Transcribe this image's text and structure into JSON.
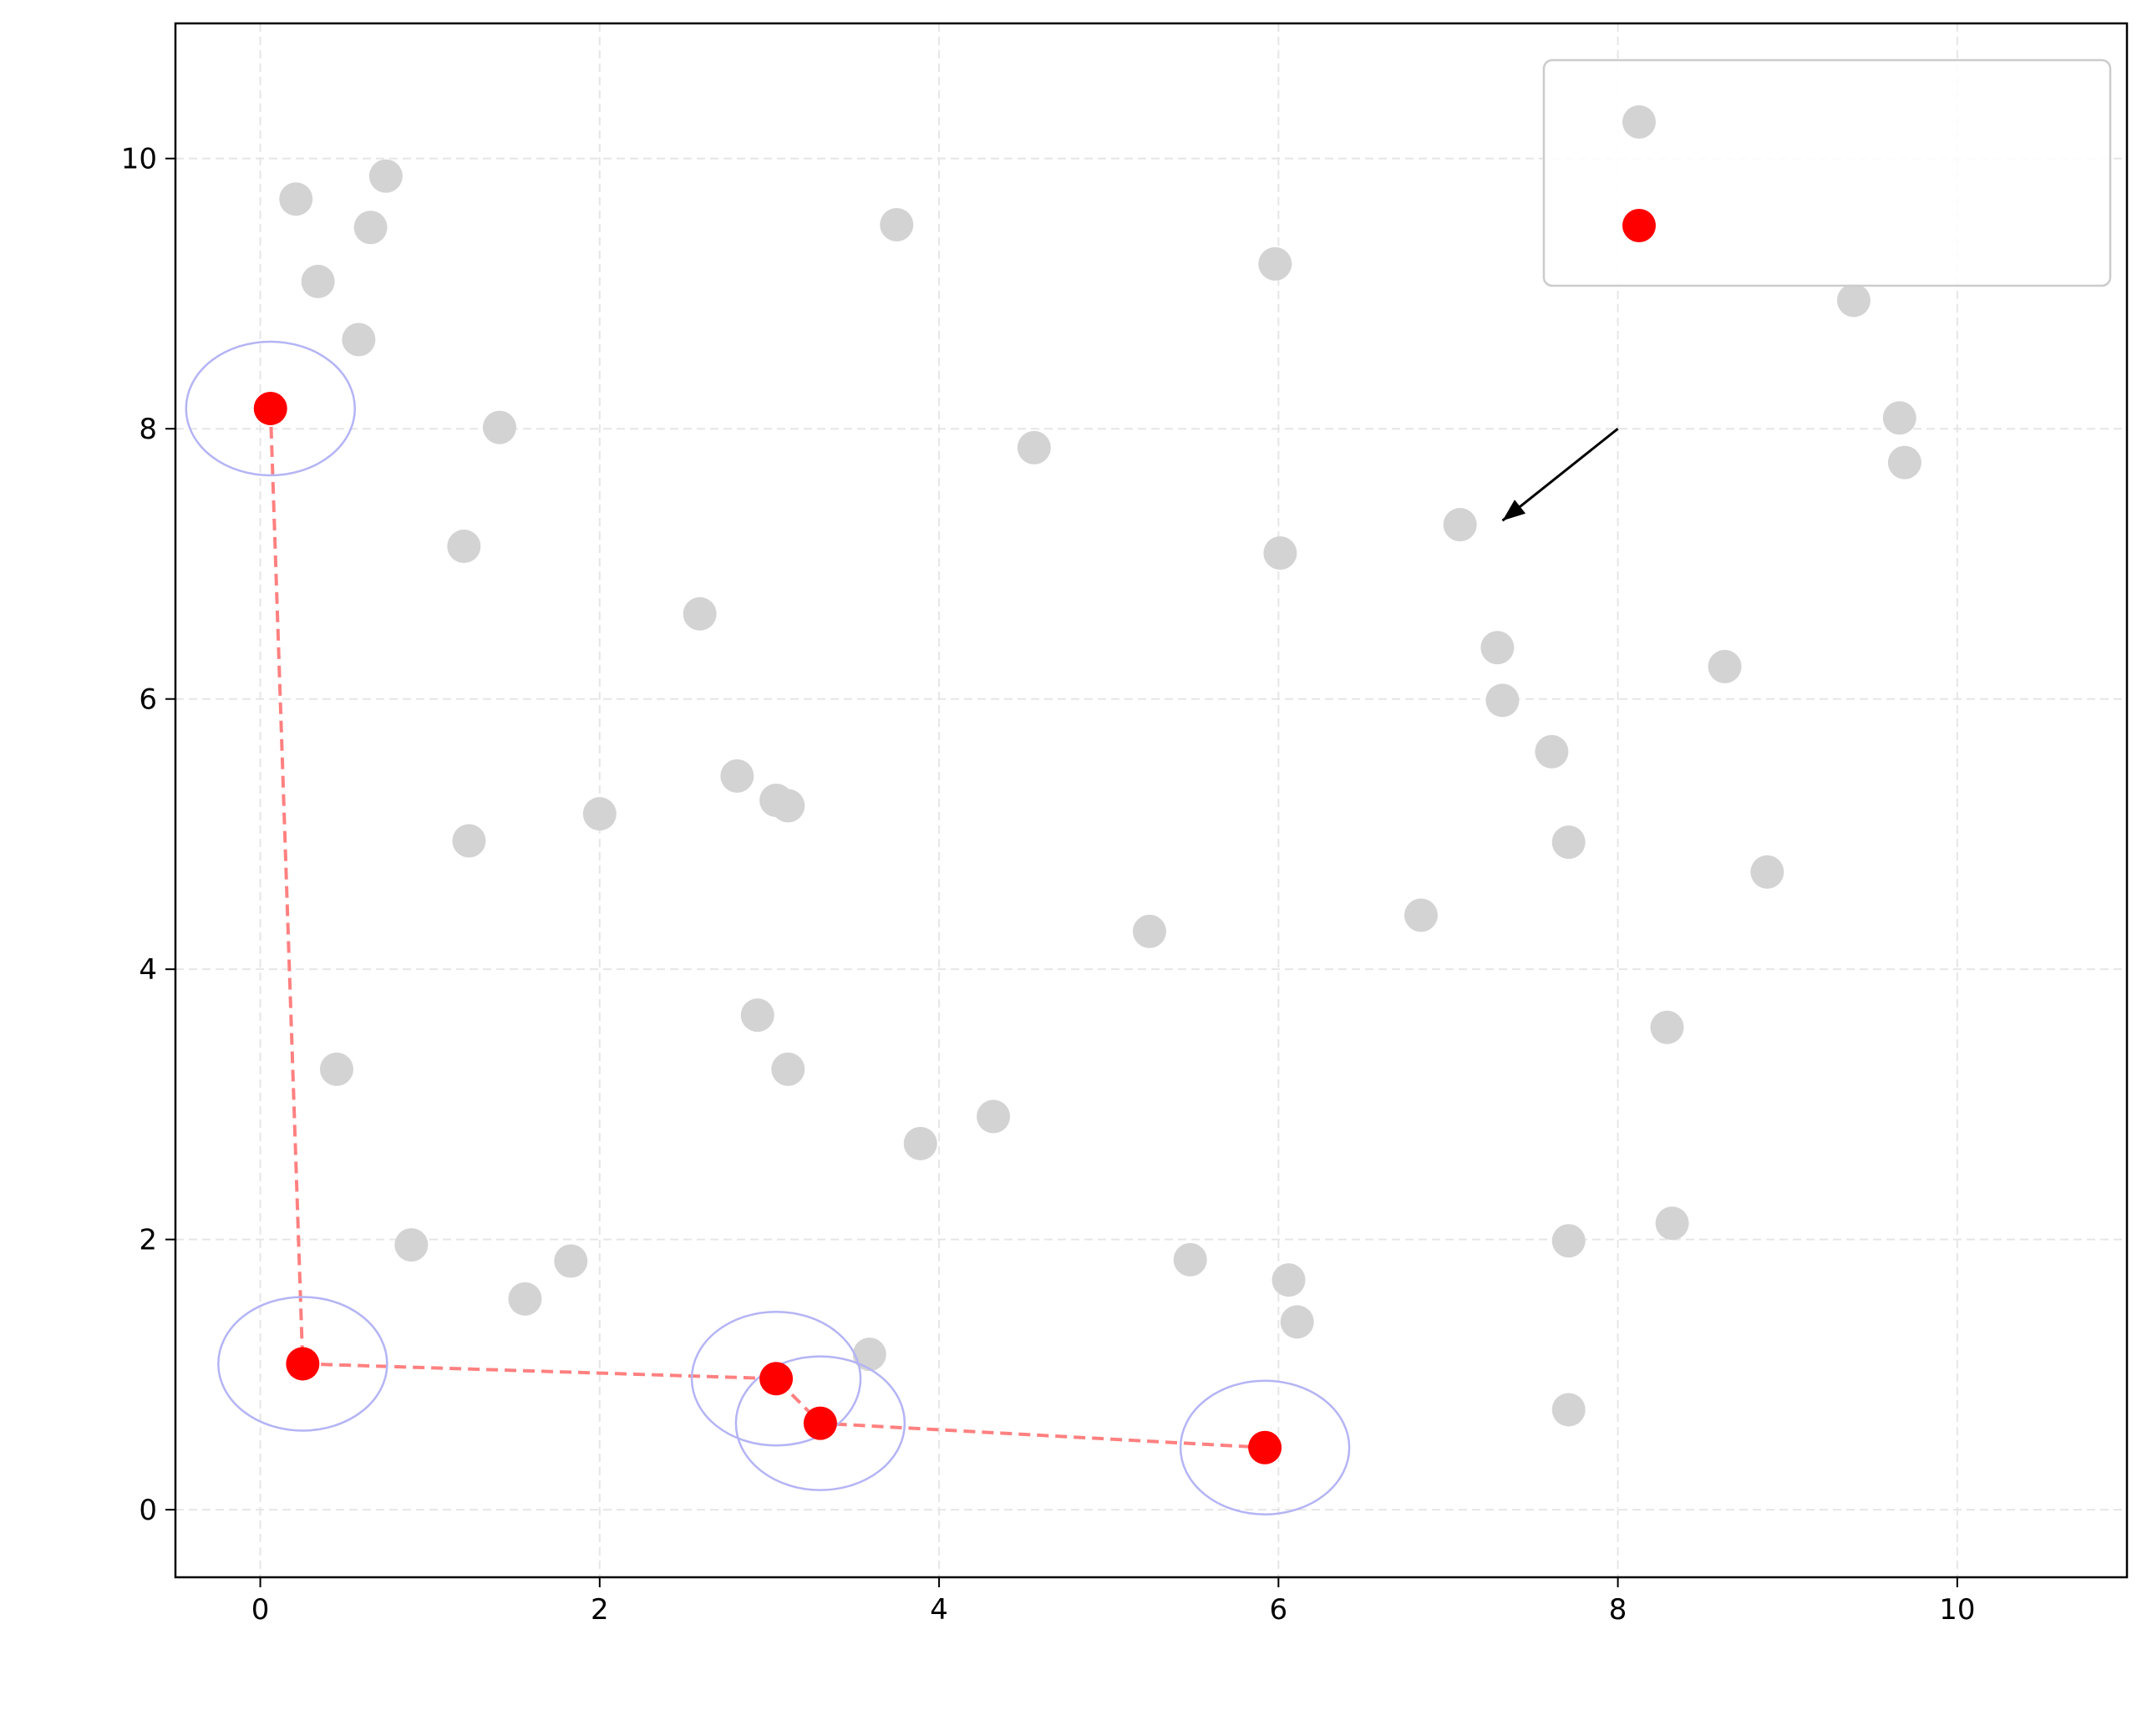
{
  "chart_data": {
    "type": "scatter",
    "title": "",
    "xlabel": "",
    "ylabel": "",
    "xlim": [
      -0.5,
      11.0
    ],
    "ylim": [
      -0.5,
      11.0
    ],
    "xticks": [
      0,
      2,
      4,
      6,
      8,
      10
    ],
    "yticks": [
      0,
      2,
      4,
      6,
      8,
      10
    ],
    "grid": true,
    "legend_position": "top-right",
    "colors": {
      "all_points": "#d3d3d3",
      "pareto_points": "#ff0000",
      "pareto_line": "#ff8080",
      "pareto_circles": "#b4b4f5",
      "grid": "#e6e6e6",
      "annotation": "#000000"
    },
    "series": [
      {
        "name": "",
        "role": "all",
        "points": [
          [
            0.21,
            9.7
          ],
          [
            0.74,
            9.87
          ],
          [
            0.65,
            9.49
          ],
          [
            0.34,
            9.09
          ],
          [
            0.58,
            8.66
          ],
          [
            1.41,
            8.01
          ],
          [
            1.2,
            7.13
          ],
          [
            1.23,
            4.95
          ],
          [
            2.0,
            5.15
          ],
          [
            2.59,
            6.63
          ],
          [
            2.81,
            5.43
          ],
          [
            3.04,
            5.25
          ],
          [
            3.11,
            5.21
          ],
          [
            3.75,
            9.51
          ],
          [
            4.56,
            7.86
          ],
          [
            2.93,
            3.66
          ],
          [
            3.11,
            3.26
          ],
          [
            0.45,
            3.26
          ],
          [
            0.89,
            1.96
          ],
          [
            1.56,
            1.56
          ],
          [
            1.83,
            1.84
          ],
          [
            3.89,
            2.71
          ],
          [
            4.32,
            2.91
          ],
          [
            3.59,
            1.15
          ],
          [
            5.24,
            4.28
          ],
          [
            5.48,
            1.85
          ],
          [
            5.98,
            9.22
          ],
          [
            6.01,
            7.08
          ],
          [
            6.06,
            1.7
          ],
          [
            6.11,
            1.39
          ],
          [
            6.84,
            4.4
          ],
          [
            7.07,
            7.29
          ],
          [
            7.29,
            6.38
          ],
          [
            7.32,
            5.99
          ],
          [
            7.61,
            5.61
          ],
          [
            7.71,
            4.94
          ],
          [
            7.71,
            1.99
          ],
          [
            7.71,
            0.74
          ],
          [
            8.29,
            3.57
          ],
          [
            8.32,
            2.12
          ],
          [
            8.63,
            6.24
          ],
          [
            8.88,
            4.72
          ],
          [
            9.39,
            8.95
          ],
          [
            9.66,
            8.08
          ],
          [
            9.69,
            7.75
          ]
        ]
      },
      {
        "name": "",
        "role": "pareto",
        "points": [
          [
            0.06,
            8.15
          ],
          [
            0.25,
            1.08
          ],
          [
            3.04,
            0.97
          ],
          [
            3.3,
            0.64
          ],
          [
            5.92,
            0.46
          ]
        ]
      }
    ],
    "annotation": {
      "text": "",
      "from": [
        8.0,
        8.0
      ],
      "to": [
        7.32,
        7.32
      ]
    }
  }
}
